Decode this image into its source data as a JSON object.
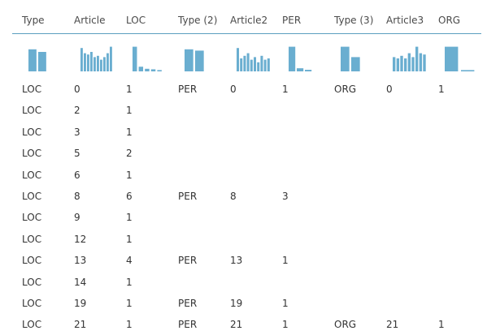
{
  "colors": {
    "bar": "#6aaed0",
    "header_line": "#5b9fbf",
    "text": "#333333",
    "header_text": "#4a4a4a"
  },
  "columns": [
    "Type",
    "Article",
    "LOC",
    "Type (2)",
    "Article2",
    "PER",
    "Type (3)",
    "Article3",
    "ORG"
  ],
  "histograms": [
    [
      0.85,
      0.75
    ],
    [
      0.9,
      0.7,
      0.65,
      0.75,
      0.55,
      0.6,
      0.45,
      0.55,
      0.7,
      0.95
    ],
    [
      0.95,
      0.18,
      0.1,
      0.08,
      0.05
    ],
    [
      0.85,
      0.8
    ],
    [
      0.9,
      0.5,
      0.6,
      0.7,
      0.45,
      0.55,
      0.35,
      0.6,
      0.45,
      0.5
    ],
    [
      0.95,
      0.12,
      0.06
    ],
    [
      0.95,
      0.55
    ],
    [
      0.55,
      0.5,
      0.6,
      0.5,
      0.7,
      0.55,
      0.95,
      0.7,
      0.65
    ],
    [
      0.95,
      0.05
    ]
  ],
  "rows": [
    [
      "LOC",
      "0",
      "1",
      "PER",
      "0",
      "1",
      "ORG",
      "0",
      "1"
    ],
    [
      "LOC",
      "2",
      "1",
      "",
      "",
      "",
      "",
      "",
      ""
    ],
    [
      "LOC",
      "3",
      "1",
      "",
      "",
      "",
      "",
      "",
      ""
    ],
    [
      "LOC",
      "5",
      "2",
      "",
      "",
      "",
      "",
      "",
      ""
    ],
    [
      "LOC",
      "6",
      "1",
      "",
      "",
      "",
      "",
      "",
      ""
    ],
    [
      "LOC",
      "8",
      "6",
      "PER",
      "8",
      "3",
      "",
      "",
      ""
    ],
    [
      "LOC",
      "9",
      "1",
      "",
      "",
      "",
      "",
      "",
      ""
    ],
    [
      "LOC",
      "12",
      "1",
      "",
      "",
      "",
      "",
      "",
      ""
    ],
    [
      "LOC",
      "13",
      "4",
      "PER",
      "13",
      "1",
      "",
      "",
      ""
    ],
    [
      "LOC",
      "14",
      "1",
      "",
      "",
      "",
      "",
      "",
      ""
    ],
    [
      "LOC",
      "19",
      "1",
      "PER",
      "19",
      "1",
      "",
      "",
      ""
    ],
    [
      "LOC",
      "21",
      "1",
      "PER",
      "21",
      "1",
      "ORG",
      "21",
      "1"
    ]
  ]
}
